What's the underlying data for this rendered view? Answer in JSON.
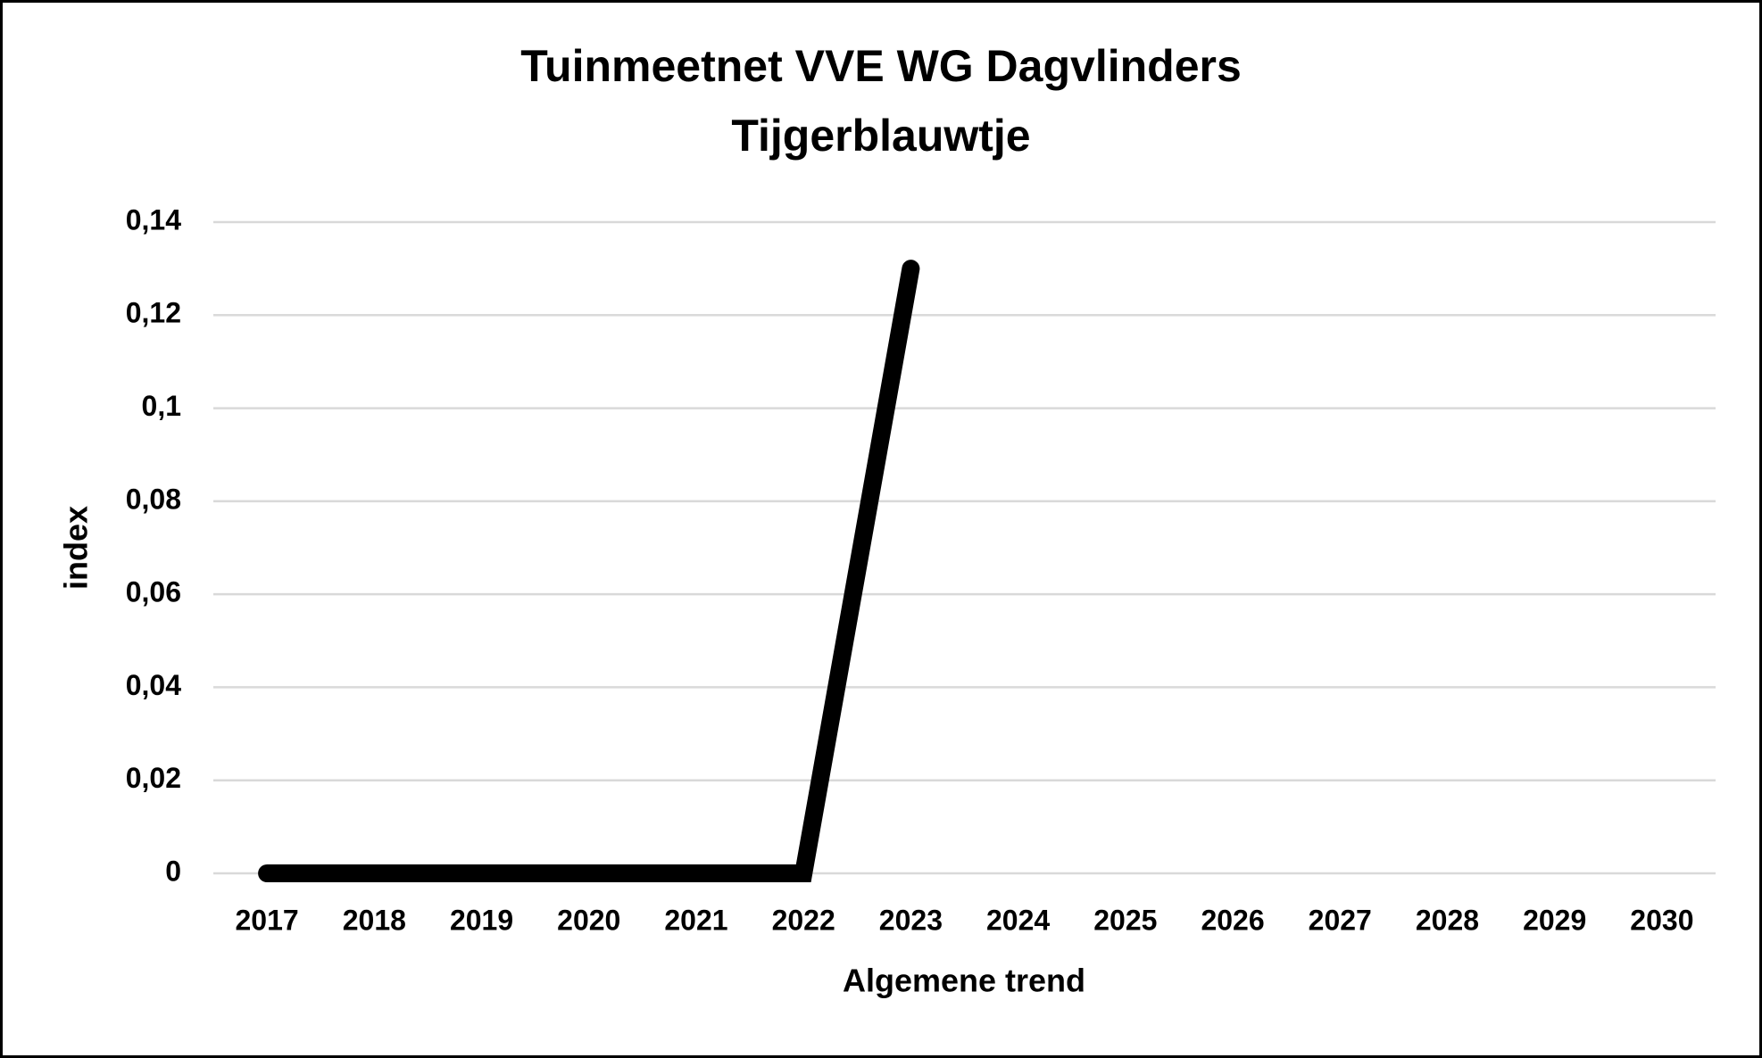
{
  "chart_data": {
    "type": "line",
    "title": "Tuinmeetnet VVE WG Dagvlinders",
    "subtitle": "Tijgerblauwtje",
    "x_label": "Algemene trend",
    "y_label": "index",
    "categories": [
      "2017",
      "2018",
      "2019",
      "2020",
      "2021",
      "2022",
      "2023",
      "2024",
      "2025",
      "2026",
      "2027",
      "2028",
      "2029",
      "2030"
    ],
    "values": [
      0,
      0,
      0,
      0,
      0,
      0,
      0.13,
      null,
      null,
      null,
      null,
      null,
      null,
      null
    ],
    "color": "#000000",
    "ylim": [
      0,
      0.14
    ],
    "yticks": [
      0,
      {
        "value": 0.02,
        "label": "0,02"
      },
      {
        "value": 0.04,
        "label": "0,04"
      },
      {
        "value": 0.06,
        "label": "0,06"
      },
      {
        "value": 0.08,
        "label": "0,08"
      },
      {
        "value": 0.1,
        "label": "0,1"
      },
      {
        "value": 0.12,
        "label": "0,12"
      },
      {
        "value": 0.14,
        "label": "0,14"
      }
    ],
    "grid": true
  }
}
